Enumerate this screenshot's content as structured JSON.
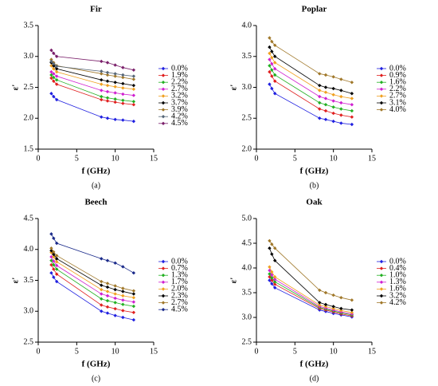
{
  "chart_data": [
    {
      "type": "scatter",
      "title": "Fir",
      "label": "(a)",
      "xlabel": "f (GHz)",
      "ylabel": "ε'",
      "xlim": [
        0,
        15
      ],
      "xticks": [
        0,
        5,
        10,
        15
      ],
      "ylim": [
        1.5,
        3.5
      ],
      "yticks": [
        1.5,
        {
          "value": 2,
          "label": "2.0"
        },
        2.5,
        {
          "value": 3,
          "label": "3.0"
        },
        3.5
      ],
      "x": [
        1.7,
        2.0,
        2.4,
        8.2,
        9,
        10,
        11,
        12.4
      ],
      "series": [
        {
          "name": "0.0%",
          "color": "#1f1fe0",
          "values": [
            2.4,
            2.35,
            2.3,
            2.02,
            2.0,
            1.98,
            1.97,
            1.95
          ]
        },
        {
          "name": "1.9%",
          "color": "#e01f1f",
          "values": [
            2.65,
            2.6,
            2.55,
            2.3,
            2.28,
            2.26,
            2.24,
            2.22
          ]
        },
        {
          "name": "2.2%",
          "color": "#22b022",
          "values": [
            2.7,
            2.66,
            2.62,
            2.35,
            2.33,
            2.31,
            2.29,
            2.27
          ]
        },
        {
          "name": "2.7%",
          "color": "#d020d0",
          "values": [
            2.75,
            2.72,
            2.68,
            2.45,
            2.43,
            2.41,
            2.39,
            2.37
          ]
        },
        {
          "name": "3.2%",
          "color": "#f0a020",
          "values": [
            2.85,
            2.8,
            2.75,
            2.55,
            2.53,
            2.51,
            2.49,
            2.47
          ]
        },
        {
          "name": "3.7%",
          "color": "#000000",
          "values": [
            2.9,
            2.85,
            2.8,
            2.62,
            2.6,
            2.58,
            2.56,
            2.53
          ]
        },
        {
          "name": "3.9%",
          "color": "#a0782a",
          "values": [
            2.95,
            2.9,
            2.85,
            2.72,
            2.7,
            2.68,
            2.66,
            2.63
          ]
        },
        {
          "name": "4.2%",
          "color": "#556677",
          "values": [
            2.92,
            2.88,
            2.84,
            2.76,
            2.74,
            2.72,
            2.7,
            2.68
          ]
        },
        {
          "name": "4.5%",
          "color": "#7a1f6a",
          "values": [
            3.1,
            3.05,
            3.0,
            2.92,
            2.9,
            2.86,
            2.82,
            2.78
          ]
        }
      ]
    },
    {
      "type": "scatter",
      "title": "Poplar",
      "label": "(b)",
      "xlabel": "f (GHz)",
      "ylabel": "ε'",
      "xlim": [
        0,
        15
      ],
      "xticks": [
        0,
        5,
        10,
        15
      ],
      "ylim": [
        2,
        4
      ],
      "yticks": [
        {
          "value": 2,
          "label": "2.0"
        },
        2.5,
        {
          "value": 3,
          "label": "3.0"
        },
        3.5,
        {
          "value": 4,
          "label": "4.0"
        }
      ],
      "x": [
        1.7,
        2.0,
        2.4,
        8.2,
        9,
        10,
        11,
        12.4
      ],
      "series": [
        {
          "name": "0.0%",
          "color": "#1f1fe0",
          "values": [
            3.05,
            2.98,
            2.9,
            2.5,
            2.48,
            2.45,
            2.42,
            2.4
          ]
        },
        {
          "name": "0.9%",
          "color": "#e01f1f",
          "values": [
            3.25,
            3.18,
            3.1,
            2.65,
            2.62,
            2.58,
            2.55,
            2.52
          ]
        },
        {
          "name": "1.6%",
          "color": "#22b022",
          "values": [
            3.35,
            3.28,
            3.2,
            2.75,
            2.72,
            2.68,
            2.65,
            2.62
          ]
        },
        {
          "name": "2.2%",
          "color": "#d020d0",
          "values": [
            3.45,
            3.38,
            3.3,
            2.85,
            2.82,
            2.78,
            2.75,
            2.72
          ]
        },
        {
          "name": "2.7%",
          "color": "#f0a020",
          "values": [
            3.55,
            3.48,
            3.4,
            2.95,
            2.92,
            2.88,
            2.85,
            2.82
          ]
        },
        {
          "name": "3.1%",
          "color": "#000000",
          "values": [
            3.65,
            3.58,
            3.5,
            3.03,
            3.0,
            2.98,
            2.95,
            2.9
          ]
        },
        {
          "name": "4.0%",
          "color": "#a0782a",
          "values": [
            3.8,
            3.74,
            3.68,
            3.22,
            3.2,
            3.17,
            3.13,
            3.08
          ]
        }
      ]
    },
    {
      "type": "scatter",
      "title": "Beech",
      "label": "(c)",
      "xlabel": "f (GHz)",
      "ylabel": "ε'",
      "xlim": [
        0,
        15
      ],
      "xticks": [
        0,
        5,
        10,
        15
      ],
      "ylim": [
        2.5,
        4.5
      ],
      "yticks": [
        2.5,
        {
          "value": 3,
          "label": "3.0"
        },
        3.5,
        {
          "value": 4,
          "label": "4.0"
        },
        4.5
      ],
      "x": [
        1.7,
        2.0,
        2.4,
        8.2,
        9,
        10,
        11,
        12.4
      ],
      "series": [
        {
          "name": "0.0%",
          "color": "#1f1fe0",
          "values": [
            3.62,
            3.55,
            3.48,
            3.0,
            2.97,
            2.93,
            2.9,
            2.86
          ]
        },
        {
          "name": "0.7%",
          "color": "#e01f1f",
          "values": [
            3.75,
            3.68,
            3.6,
            3.1,
            3.07,
            3.04,
            3.01,
            2.98
          ]
        },
        {
          "name": "1.3%",
          "color": "#22b022",
          "values": [
            3.82,
            3.75,
            3.68,
            3.2,
            3.17,
            3.14,
            3.11,
            3.08
          ]
        },
        {
          "name": "1.7%",
          "color": "#d020d0",
          "values": [
            3.88,
            3.81,
            3.74,
            3.28,
            3.25,
            3.21,
            3.18,
            3.15
          ]
        },
        {
          "name": "2.0%",
          "color": "#f0a020",
          "values": [
            3.95,
            3.88,
            3.8,
            3.35,
            3.32,
            3.28,
            3.25,
            3.22
          ]
        },
        {
          "name": "2.3%",
          "color": "#000000",
          "values": [
            3.98,
            3.92,
            3.85,
            3.42,
            3.39,
            3.35,
            3.32,
            3.28
          ]
        },
        {
          "name": "2.7%",
          "color": "#a0782a",
          "values": [
            4.02,
            3.96,
            3.9,
            3.48,
            3.45,
            3.41,
            3.37,
            3.33
          ]
        },
        {
          "name": "4.5%",
          "color": "#1a2a8a",
          "values": [
            4.25,
            4.18,
            4.1,
            3.85,
            3.82,
            3.78,
            3.72,
            3.62
          ]
        }
      ]
    },
    {
      "type": "scatter",
      "title": "Oak",
      "label": "(d)",
      "xlabel": "f (GHz)",
      "ylabel": "ε'",
      "xlim": [
        0,
        15
      ],
      "xticks": [
        0,
        5,
        10,
        15
      ],
      "ylim": [
        2.5,
        5
      ],
      "yticks": [
        2.5,
        {
          "value": 3,
          "label": "3.0"
        },
        3.5,
        {
          "value": 4,
          "label": "4.0"
        },
        4.5,
        {
          "value": 5,
          "label": "5.0"
        }
      ],
      "x": [
        1.7,
        2.0,
        2.4,
        8.2,
        9,
        10,
        11,
        12.4
      ],
      "series": [
        {
          "name": "0.0%",
          "color": "#1f1fe0",
          "values": [
            3.75,
            3.68,
            3.6,
            3.15,
            3.12,
            3.08,
            3.05,
            3.01
          ]
        },
        {
          "name": "0.4%",
          "color": "#e01f1f",
          "values": [
            3.82,
            3.75,
            3.67,
            3.18,
            3.15,
            3.11,
            3.07,
            3.03
          ]
        },
        {
          "name": "1.0%",
          "color": "#22b022",
          "values": [
            3.88,
            3.8,
            3.72,
            3.2,
            3.17,
            3.13,
            3.09,
            3.05
          ]
        },
        {
          "name": "1.3%",
          "color": "#d020d0",
          "values": [
            3.95,
            3.86,
            3.77,
            3.22,
            3.19,
            3.15,
            3.11,
            3.07
          ]
        },
        {
          "name": "1.6%",
          "color": "#f0a020",
          "values": [
            4.02,
            3.92,
            3.82,
            3.25,
            3.22,
            3.18,
            3.14,
            3.1
          ]
        },
        {
          "name": "3.2%",
          "color": "#000000",
          "values": [
            4.4,
            4.28,
            4.15,
            3.3,
            3.26,
            3.22,
            3.18,
            3.15
          ]
        },
        {
          "name": "4.2%",
          "color": "#a0782a",
          "values": [
            4.55,
            4.48,
            4.4,
            3.55,
            3.5,
            3.45,
            3.4,
            3.35
          ]
        }
      ]
    }
  ]
}
